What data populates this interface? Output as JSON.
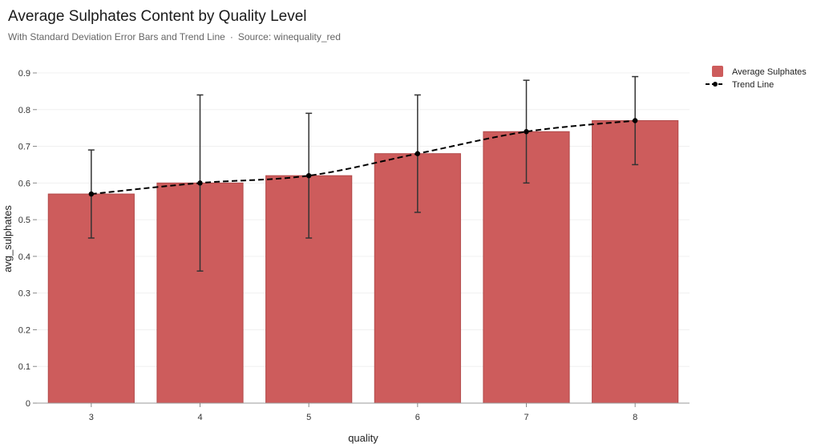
{
  "header": {
    "title": "Average Sulphates Content by Quality Level",
    "subtitle": "With Standard Deviation Error Bars and Trend Line",
    "separator": "·",
    "source": "Source: winequality_red"
  },
  "colors": {
    "bar": "#cd5c5c",
    "bar_stroke": "#b24a4a",
    "error_bar": "#333333",
    "trend": "#000000",
    "grid": "#f0f0f0"
  },
  "chart_data": {
    "type": "bar",
    "title": "Average Sulphates Content by Quality Level",
    "xlabel": "quality",
    "ylabel": "avg_sulphates",
    "categories": [
      "3",
      "4",
      "5",
      "6",
      "7",
      "8"
    ],
    "series": [
      {
        "name": "Average Sulphates",
        "type": "bar",
        "values": [
          0.57,
          0.6,
          0.62,
          0.68,
          0.74,
          0.77
        ],
        "error": [
          0.12,
          0.24,
          0.17,
          0.16,
          0.14,
          0.12
        ]
      },
      {
        "name": "Trend Line",
        "type": "line",
        "style": "dashed",
        "values": [
          0.57,
          0.6,
          0.62,
          0.68,
          0.74,
          0.77
        ]
      }
    ],
    "ylim": [
      0,
      0.9
    ],
    "yticks": [
      "0",
      "0.1",
      "0.2",
      "0.3",
      "0.4",
      "0.5",
      "0.6",
      "0.7",
      "0.8",
      "0.9"
    ],
    "grid": true,
    "legend_position": "top-right"
  }
}
